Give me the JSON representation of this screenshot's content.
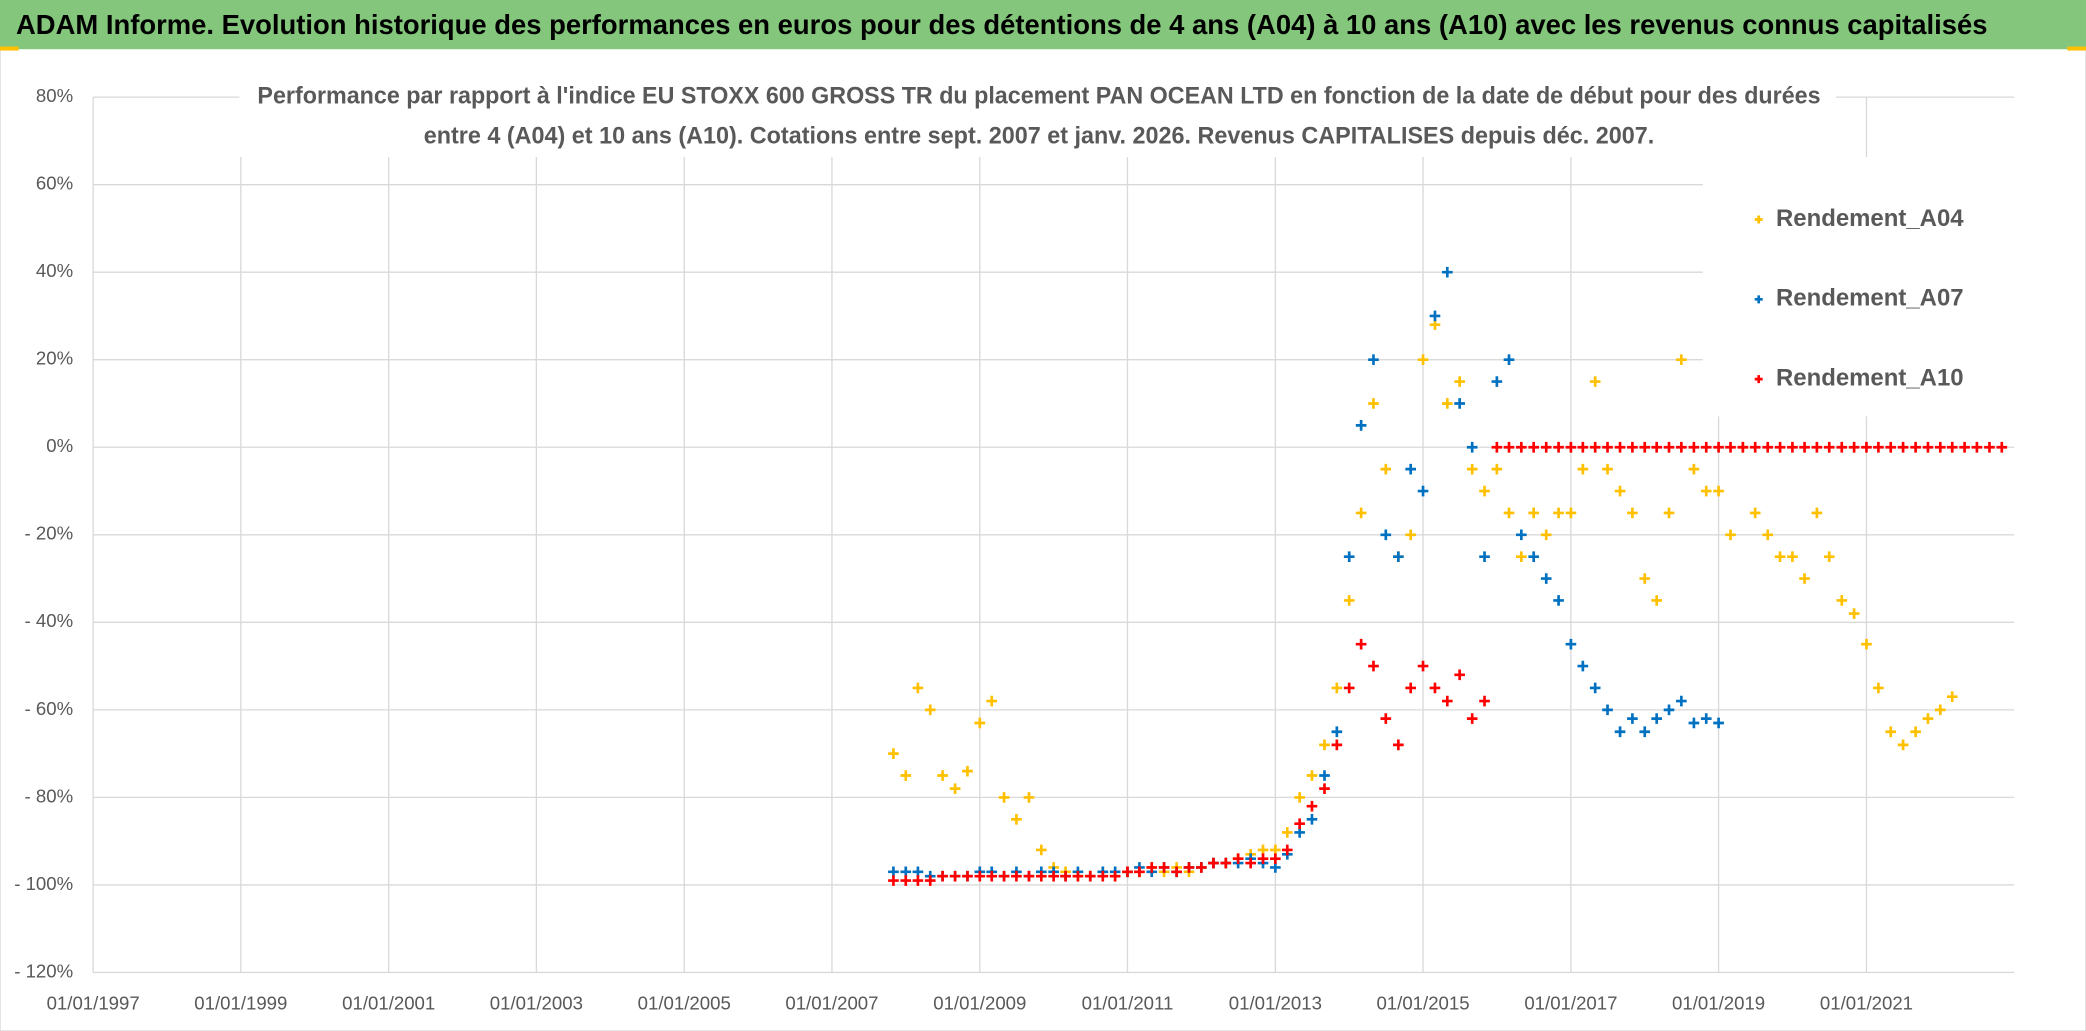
{
  "header": {
    "title": "ADAM Informe. Evolution historique des performances en euros pour des détentions de 4 ans (A04) à 10 ans (A10) avec les revenus connus capitalisés"
  },
  "chart_data": {
    "type": "scatter",
    "subtitle": [
      "Performance par rapport à l'indice EU STOXX 600 GROSS TR  du placement PAN OCEAN LTD en fonction de la date de début pour des durées",
      "entre 4 (A04) et 10 ans (A10). Cotations entre sept. 2007 et janv. 2026. Revenus CAPITALISES depuis déc. 2007."
    ],
    "xlim": [
      "01/01/1997",
      "01/01/2023"
    ],
    "xticks": [
      "01/01/1997",
      "01/01/1999",
      "01/01/2001",
      "01/01/2003",
      "01/01/2005",
      "01/01/2007",
      "01/01/2009",
      "01/01/2011",
      "01/01/2013",
      "01/01/2015",
      "01/01/2017",
      "01/01/2019",
      "01/01/2021"
    ],
    "ylim": [
      -120,
      80
    ],
    "yticks": [
      {
        "value": -120,
        "label": "- 120%"
      },
      {
        "value": -100,
        "label": "- 100%"
      },
      {
        "value": -80,
        "label": "- 80%"
      },
      {
        "value": -60,
        "label": "- 60%"
      },
      {
        "value": -40,
        "label": "- 40%"
      },
      {
        "value": -20,
        "label": "- 20%"
      },
      {
        "value": 0,
        "label": "0%"
      },
      {
        "value": 20,
        "label": "20%"
      },
      {
        "value": 40,
        "label": "40%"
      },
      {
        "value": 60,
        "label": "60%"
      },
      {
        "value": 80,
        "label": "80%"
      }
    ],
    "grid": true,
    "legend": "top-right",
    "x": [
      "01/11/2007",
      "01/01/2008",
      "01/03/2008",
      "01/05/2008",
      "01/07/2008",
      "01/09/2008",
      "01/11/2008",
      "01/01/2009",
      "01/03/2009",
      "01/05/2009",
      "01/07/2009",
      "01/09/2009",
      "01/11/2009",
      "01/01/2010",
      "01/03/2010",
      "01/05/2010",
      "01/07/2010",
      "01/09/2010",
      "01/11/2010",
      "01/01/2011",
      "01/03/2011",
      "01/05/2011",
      "01/07/2011",
      "01/09/2011",
      "01/11/2011",
      "01/01/2012",
      "01/03/2012",
      "01/05/2012",
      "01/07/2012",
      "01/09/2012",
      "01/11/2012",
      "01/01/2013",
      "01/03/2013",
      "01/05/2013",
      "01/07/2013",
      "01/09/2013",
      "01/11/2013",
      "01/01/2014",
      "01/03/2014",
      "01/05/2014",
      "01/07/2014",
      "01/09/2014",
      "01/11/2014",
      "01/01/2015",
      "01/03/2015",
      "01/05/2015",
      "01/07/2015",
      "01/09/2015",
      "01/11/2015",
      "01/01/2016",
      "01/03/2016",
      "01/05/2016",
      "01/07/2016",
      "01/09/2016",
      "01/11/2016",
      "01/01/2017",
      "01/03/2017",
      "01/05/2017",
      "01/07/2017",
      "01/09/2017",
      "01/11/2017",
      "01/01/2018",
      "01/03/2018",
      "01/05/2018",
      "01/07/2018",
      "01/09/2018",
      "01/11/2018",
      "01/01/2019",
      "01/03/2019",
      "01/05/2019",
      "01/07/2019",
      "01/09/2019",
      "01/11/2019",
      "01/01/2020",
      "01/03/2020",
      "01/05/2020",
      "01/07/2020",
      "01/09/2020",
      "01/11/2020",
      "01/01/2021",
      "01/03/2021",
      "01/05/2021",
      "01/07/2021",
      "01/09/2021",
      "01/11/2021",
      "01/01/2022",
      "01/03/2022",
      "01/05/2022",
      "01/07/2022",
      "01/09/2022",
      "01/11/2022"
    ],
    "series": [
      {
        "name": "Rendement_A04",
        "color": "#ffc000",
        "values": [
          -70,
          -75,
          -55,
          -60,
          -75,
          -78,
          -74,
          -63,
          -58,
          -80,
          -85,
          -80,
          -92,
          -96,
          -97,
          -98,
          -98,
          -97,
          -98,
          -97,
          -97,
          -96,
          -97,
          -96,
          -97,
          -96,
          -95,
          -95,
          -94,
          -93,
          -92,
          -92,
          -88,
          -80,
          -75,
          -68,
          -55,
          -35,
          -15,
          10,
          -5,
          -25,
          -20,
          20,
          28,
          10,
          15,
          -5,
          -10,
          -5,
          -15,
          -25,
          -15,
          -20,
          -15,
          -15,
          -5,
          15,
          -5,
          -10,
          -15,
          -30,
          -35,
          -15,
          20,
          -5,
          -10,
          -10,
          -20,
          0,
          -15,
          -20,
          -25,
          -25,
          -30,
          -15,
          -25,
          -35,
          -38,
          -45,
          -55,
          -65,
          -68,
          -65,
          -62,
          -60,
          -57,
          null,
          null,
          null,
          null
        ]
      },
      {
        "name": "Rendement_A07",
        "color": "#0070c0",
        "values": [
          -97,
          -97,
          -97,
          -98,
          -98,
          -98,
          -98,
          -97,
          -97,
          -98,
          -97,
          -98,
          -97,
          -97,
          -98,
          -97,
          -98,
          -97,
          -97,
          -97,
          -96,
          -97,
          -96,
          -97,
          -96,
          -96,
          -95,
          -95,
          -95,
          -94,
          -95,
          -96,
          -93,
          -88,
          -85,
          -75,
          -65,
          -25,
          5,
          20,
          -20,
          -25,
          -5,
          -10,
          30,
          40,
          10,
          0,
          -25,
          15,
          20,
          -20,
          -25,
          -30,
          -35,
          -45,
          -50,
          -55,
          -60,
          -65,
          -62,
          -65,
          -62,
          -60,
          -58,
          -63,
          -62,
          -63,
          null,
          null,
          null,
          null,
          null,
          null,
          null,
          null,
          null,
          null,
          null,
          null,
          null,
          null,
          null,
          null,
          null,
          null,
          null,
          null,
          null,
          null,
          null
        ]
      },
      {
        "name": "Rendement_A10",
        "color": "#ff0000",
        "values": [
          -99,
          -99,
          -99,
          -99,
          -98,
          -98,
          -98,
          -98,
          -98,
          -98,
          -98,
          -98,
          -98,
          -98,
          -98,
          -98,
          -98,
          -98,
          -98,
          -97,
          -97,
          -96,
          -96,
          -97,
          -96,
          -96,
          -95,
          -95,
          -94,
          -95,
          -94,
          -94,
          -92,
          -86,
          -82,
          -78,
          -68,
          -55,
          -45,
          -50,
          -62,
          -68,
          -55,
          -50,
          -55,
          -58,
          -52,
          -62,
          -58,
          0,
          0,
          0,
          0,
          0,
          0,
          0,
          0,
          0,
          0,
          0,
          0,
          0,
          0,
          0,
          0,
          0,
          0,
          0,
          0,
          0,
          0,
          0,
          0,
          0,
          0,
          0,
          0,
          0,
          0,
          0,
          0,
          0,
          0,
          0,
          0,
          0,
          0,
          0,
          0,
          0,
          0
        ]
      }
    ]
  }
}
